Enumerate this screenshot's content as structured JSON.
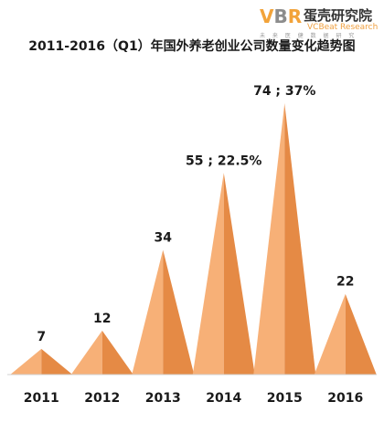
{
  "logo": {
    "mark_v": "V",
    "mark_b": "B",
    "mark_r": "R",
    "name_cn": "蛋壳研究院",
    "name_en": "VCBeat Research",
    "tagline": "未 来 医 健 数 据 研 究"
  },
  "chart_data": {
    "type": "bar",
    "title": "2011-2016（Q1）年国外养老创业公司数量变化趋势图",
    "categories": [
      "2011",
      "2012",
      "2013",
      "2014",
      "2015",
      "2016"
    ],
    "values": [
      7,
      12,
      34,
      55,
      74,
      22
    ],
    "data_labels": [
      "7",
      "12",
      "34",
      "55 ; 22.5%",
      "74 ; 37%",
      "22"
    ],
    "xlabel": "",
    "ylabel": "",
    "ylim": [
      0,
      74
    ],
    "grid": false,
    "colors": {
      "light": "#f7b077",
      "dark": "#e58a45",
      "baseline": "#d0d0d0"
    }
  }
}
